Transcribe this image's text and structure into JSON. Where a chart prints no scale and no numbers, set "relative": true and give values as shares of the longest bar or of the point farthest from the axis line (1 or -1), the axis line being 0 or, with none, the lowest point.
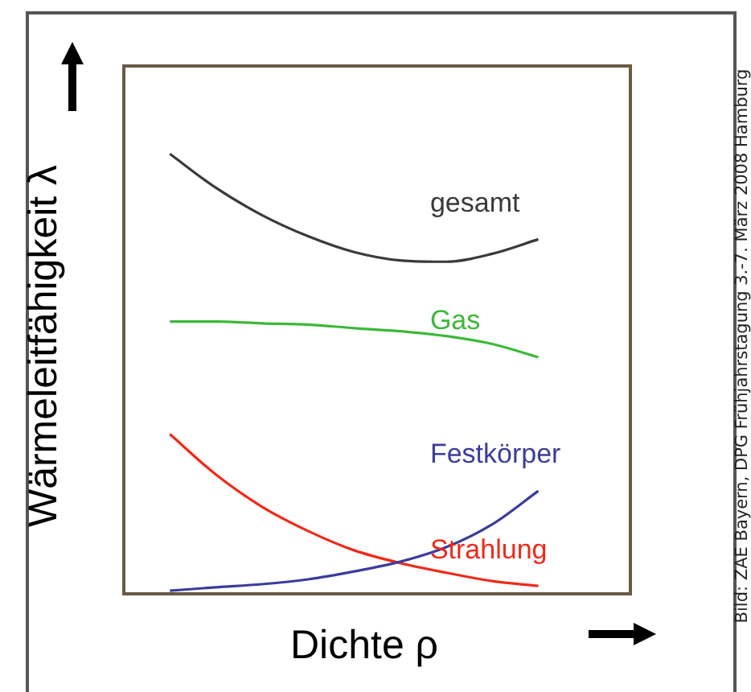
{
  "chart_data": {
    "type": "line",
    "relative": true,
    "xlabel": "Dichte ρ",
    "ylabel": "Wärmeleitfähigkeit λ",
    "annotations": [
      "Bild: ZAE Bayern, DPG Frühjahrstagung 3.-7. März 2008 Hamburg"
    ],
    "categories": [
      null,
      null,
      null,
      null,
      null,
      null,
      null,
      null,
      null,
      null,
      null,
      null
    ],
    "marker": "none",
    "line_style": "solid",
    "legend": false,
    "series": [
      {
        "name": "gesamt",
        "color": "#3a3a3a",
        "values": [
          null,
          1,
          0.923,
          0.861,
          0.813,
          0.777,
          0.758,
          0.755,
          0.773,
          0.806,
          null,
          null
        ]
      },
      {
        "name": "Gas",
        "color": "#3db83a",
        "values": [
          null,
          0.619,
          0.619,
          0.615,
          0.612,
          0.604,
          0.597,
          0.586,
          0.568,
          0.538,
          null,
          null
        ]
      },
      {
        "name": "Festkörper",
        "color": "#3c3c9c",
        "values": [
          null,
          0.007,
          0.015,
          0.022,
          0.033,
          0.051,
          0.073,
          0.106,
          0.158,
          0.234,
          null,
          null
        ]
      },
      {
        "name": "Strahlung",
        "color": "#ee2a1a",
        "values": [
          null,
          0.363,
          0.271,
          0.198,
          0.143,
          0.099,
          0.07,
          0.048,
          0.029,
          0.018,
          null,
          null
        ]
      }
    ]
  }
}
